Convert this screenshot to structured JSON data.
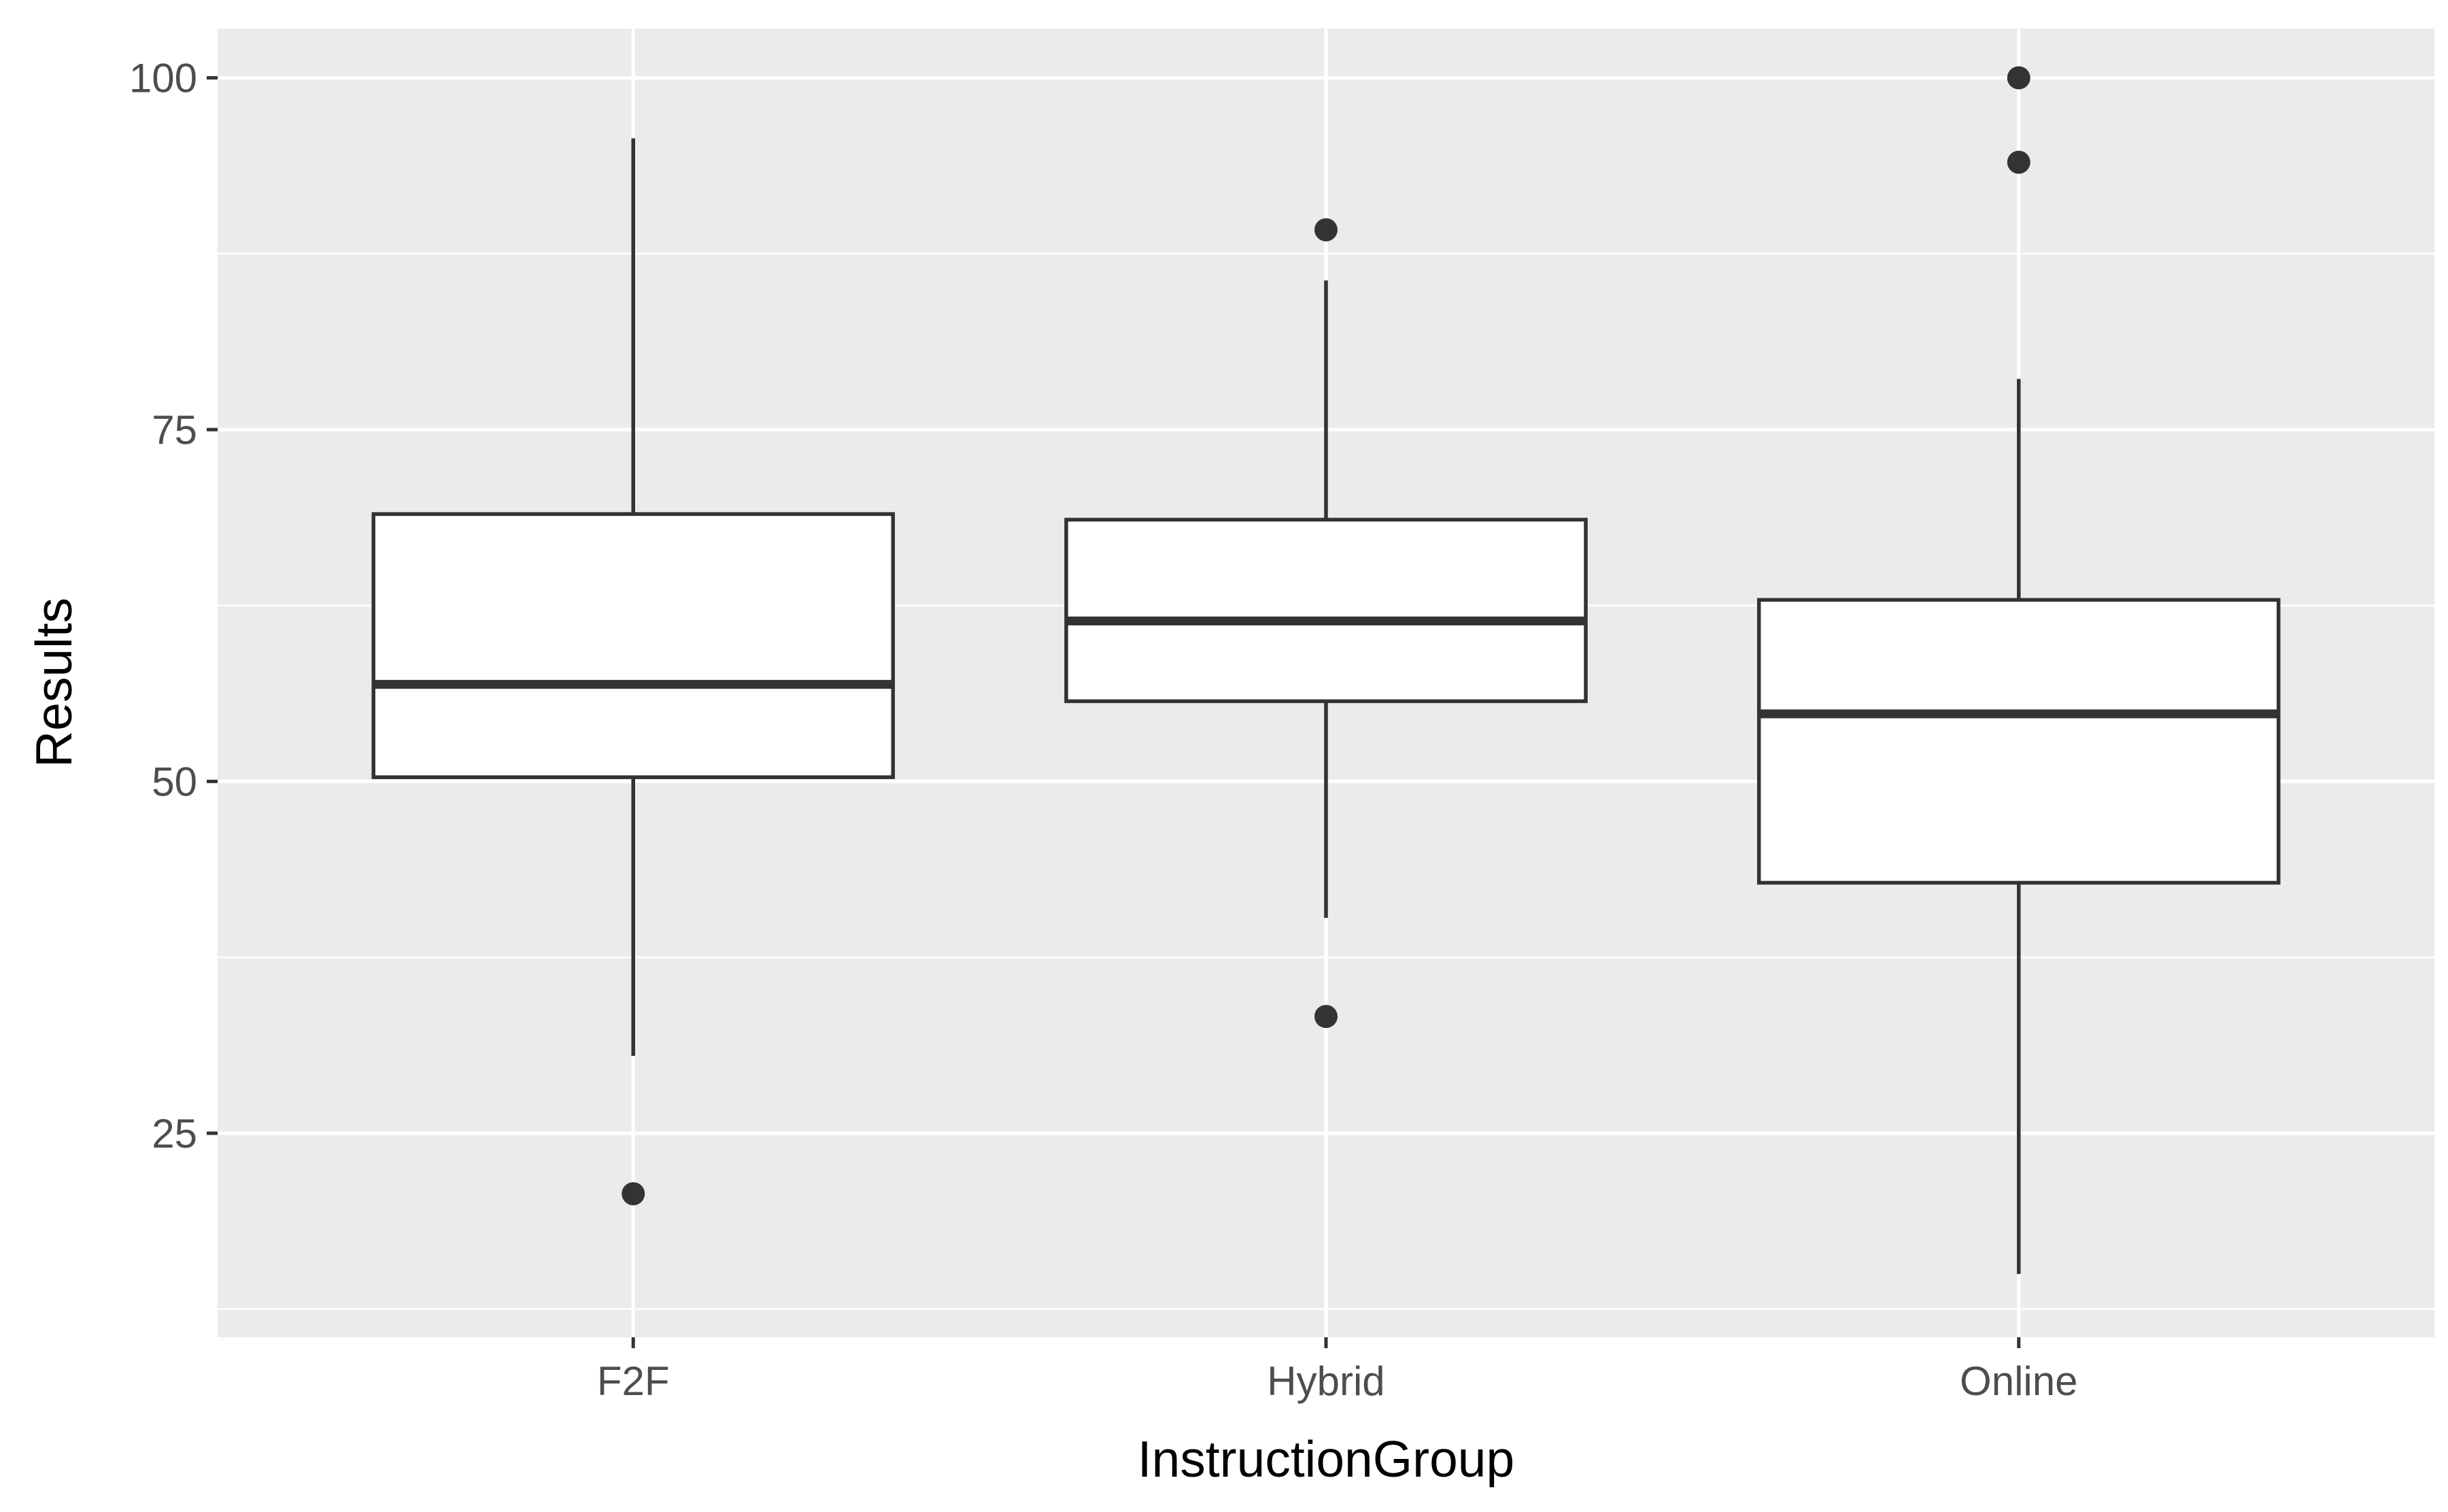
{
  "chart_data": {
    "type": "boxplot",
    "xlabel": "InstructionGroup",
    "ylabel": "Results",
    "ylim": [
      10.5,
      103.5
    ],
    "yticks": [
      25,
      50,
      75,
      100
    ],
    "y_minor_ticks": [
      12.5,
      37.5,
      62.5,
      87.5
    ],
    "grid": true,
    "legend": "none",
    "categories": [
      "F2F",
      "Hybrid",
      "Online"
    ],
    "boxes": [
      {
        "category": "F2F",
        "whisker_low": 30.5,
        "q1": 50.3,
        "median": 56.9,
        "q3": 69.0,
        "whisker_high": 95.7,
        "outliers": [
          20.7
        ]
      },
      {
        "category": "Hybrid",
        "whisker_low": 40.3,
        "q1": 55.7,
        "median": 61.4,
        "q3": 68.6,
        "whisker_high": 85.6,
        "outliers": [
          89.2,
          33.3
        ]
      },
      {
        "category": "Online",
        "whisker_low": 15.0,
        "q1": 42.8,
        "median": 54.8,
        "q3": 62.9,
        "whisker_high": 78.6,
        "outliers": [
          100.0,
          94.0
        ]
      }
    ],
    "colors": {
      "panel_background": "#ebebeb",
      "grid": "#ffffff",
      "box_fill": "#ffffff",
      "box_line": "#333333",
      "tick_text": "#4d4d4d",
      "title_text": "#000000"
    }
  }
}
